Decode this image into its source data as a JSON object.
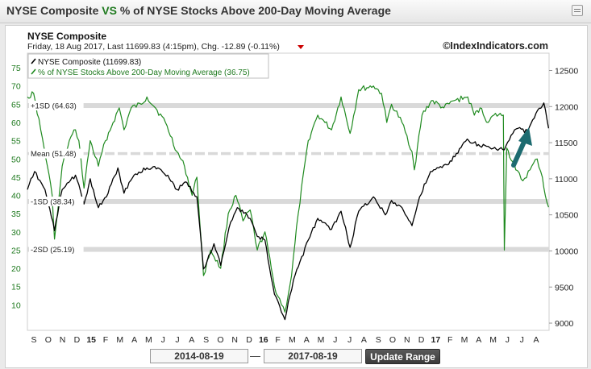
{
  "window": {
    "title_part1": "NYSE Composite",
    "title_vs": "VS",
    "title_part2": "% of NYSE Stocks Above 200-Day Moving Average"
  },
  "chart_header": {
    "name": "NYSE Composite",
    "quote": "Friday, 18 Aug 2017, Last 11699.83 (4:15pm), Chg. -12.89 (-0.11%)",
    "watermark": "©IndexIndicators.com"
  },
  "range": {
    "start": "2014-08-19",
    "separator": "—",
    "end": "2017-08-19",
    "update_label": "Update Range"
  },
  "colors": {
    "index_line": "#000000",
    "breadth_line": "#1f8a1f",
    "band": "#d9d9d9",
    "arrow": "#1d6b70",
    "down_triangle": "#cc0000"
  },
  "chart_data": {
    "type": "line",
    "legend_position": "top-left",
    "legend": [
      "NYSE Composite (11699.83)",
      "% of NYSE Stocks Above 200-Day Moving Average (36.75)"
    ],
    "x_ticks": [
      "S",
      "O",
      "N",
      "D",
      "15",
      "F",
      "M",
      "A",
      "M",
      "J",
      "J",
      "A",
      "S",
      "O",
      "N",
      "D",
      "16",
      "F",
      "M",
      "A",
      "M",
      "J",
      "J",
      "A",
      "S",
      "O",
      "N",
      "D",
      "17",
      "F",
      "M",
      "A",
      "M",
      "J",
      "J",
      "A"
    ],
    "x_range": [
      "2014-08-19",
      "2017-08-19"
    ],
    "y_left": {
      "ticks": [
        10,
        15,
        20,
        25,
        30,
        35,
        40,
        45,
        50,
        55,
        60,
        65,
        70,
        75
      ],
      "range": [
        3,
        79
      ]
    },
    "y_right": {
      "ticks": [
        9000,
        9500,
        10000,
        10500,
        11000,
        11500,
        12000,
        12500
      ],
      "range": [
        8900,
        12740
      ]
    },
    "bands": [
      {
        "label": "+1SD (64.63)",
        "value": 64.63
      },
      {
        "label": "Mean (51.48)",
        "value": 51.48,
        "style": "dashed"
      },
      {
        "label": "-1SD (38.34)",
        "value": 38.34
      },
      {
        "label": "-2SD (25.19)",
        "value": 25.19
      }
    ],
    "series": [
      {
        "name": "NYSE Composite (11699.83)",
        "axis": "right",
        "points": [
          [
            "2014-08-19",
            10850
          ],
          [
            "2014-09-03",
            11100
          ],
          [
            "2014-09-25",
            10850
          ],
          [
            "2014-10-15",
            10280
          ],
          [
            "2014-10-31",
            10850
          ],
          [
            "2014-11-28",
            11050
          ],
          [
            "2014-12-16",
            10650
          ],
          [
            "2014-12-29",
            11000
          ],
          [
            "2015-01-15",
            10600
          ],
          [
            "2015-02-01",
            10750
          ],
          [
            "2015-02-25",
            11150
          ],
          [
            "2015-03-10",
            10800
          ],
          [
            "2015-03-31",
            11050
          ],
          [
            "2015-04-27",
            11150
          ],
          [
            "2015-05-20",
            11150
          ],
          [
            "2015-06-10",
            11050
          ],
          [
            "2015-06-29",
            10850
          ],
          [
            "2015-07-20",
            10950
          ],
          [
            "2015-08-10",
            10750
          ],
          [
            "2015-08-24",
            9750
          ],
          [
            "2015-09-15",
            10100
          ],
          [
            "2015-09-29",
            9800
          ],
          [
            "2015-10-20",
            10400
          ],
          [
            "2015-11-03",
            10600
          ],
          [
            "2015-11-30",
            10450
          ],
          [
            "2015-12-15",
            10200
          ],
          [
            "2015-12-31",
            10150
          ],
          [
            "2016-01-20",
            9400
          ],
          [
            "2016-02-11",
            9050
          ],
          [
            "2016-02-29",
            9600
          ],
          [
            "2016-03-31",
            10150
          ],
          [
            "2016-04-20",
            10450
          ],
          [
            "2016-05-19",
            10300
          ],
          [
            "2016-06-08",
            10550
          ],
          [
            "2016-06-27",
            10050
          ],
          [
            "2016-07-15",
            10550
          ],
          [
            "2016-08-15",
            10750
          ],
          [
            "2016-09-09",
            10500
          ],
          [
            "2016-09-22",
            10700
          ],
          [
            "2016-10-14",
            10600
          ],
          [
            "2016-11-04",
            10350
          ],
          [
            "2016-11-20",
            10750
          ],
          [
            "2016-12-13",
            11100
          ],
          [
            "2017-01-20",
            11200
          ],
          [
            "2017-02-28",
            11550
          ],
          [
            "2017-03-27",
            11450
          ],
          [
            "2017-04-13",
            11450
          ],
          [
            "2017-05-17",
            11400
          ],
          [
            "2017-05-31",
            11600
          ],
          [
            "2017-06-15",
            11700
          ],
          [
            "2017-07-05",
            11650
          ],
          [
            "2017-07-26",
            11950
          ],
          [
            "2017-08-08",
            12050
          ],
          [
            "2017-08-18",
            11699.83
          ]
        ]
      },
      {
        "name": "% of NYSE Stocks Above 200-Day Moving Average (36.75)",
        "axis": "left",
        "points": [
          [
            "2014-08-19",
            67
          ],
          [
            "2014-09-01",
            68
          ],
          [
            "2014-09-16",
            58
          ],
          [
            "2014-09-30",
            48
          ],
          [
            "2014-10-10",
            40
          ],
          [
            "2014-10-15",
            28
          ],
          [
            "2014-10-22",
            36
          ],
          [
            "2014-10-31",
            48
          ],
          [
            "2014-11-15",
            55
          ],
          [
            "2014-11-28",
            58
          ],
          [
            "2014-12-05",
            55
          ],
          [
            "2014-12-16",
            42
          ],
          [
            "2014-12-29",
            55
          ],
          [
            "2015-01-15",
            48
          ],
          [
            "2015-01-30",
            55
          ],
          [
            "2015-02-15",
            60
          ],
          [
            "2015-02-28",
            64
          ],
          [
            "2015-03-10",
            58
          ],
          [
            "2015-03-25",
            64
          ],
          [
            "2015-04-15",
            65
          ],
          [
            "2015-04-27",
            67
          ],
          [
            "2015-05-15",
            64
          ],
          [
            "2015-06-05",
            60
          ],
          [
            "2015-06-29",
            52
          ],
          [
            "2015-07-15",
            48
          ],
          [
            "2015-07-31",
            40
          ],
          [
            "2015-08-10",
            45
          ],
          [
            "2015-08-24",
            18
          ],
          [
            "2015-09-08",
            25
          ],
          [
            "2015-09-29",
            20
          ],
          [
            "2015-10-15",
            35
          ],
          [
            "2015-10-31",
            40
          ],
          [
            "2015-11-15",
            33
          ],
          [
            "2015-11-30",
            36
          ],
          [
            "2015-12-15",
            25
          ],
          [
            "2015-12-31",
            30
          ],
          [
            "2016-01-20",
            15
          ],
          [
            "2016-02-11",
            8
          ],
          [
            "2016-02-25",
            18
          ],
          [
            "2016-03-10",
            35
          ],
          [
            "2016-03-31",
            55
          ],
          [
            "2016-04-20",
            62
          ],
          [
            "2016-05-05",
            60
          ],
          [
            "2016-05-19",
            58
          ],
          [
            "2016-06-08",
            67
          ],
          [
            "2016-06-27",
            57
          ],
          [
            "2016-07-15",
            69
          ],
          [
            "2016-08-15",
            70
          ],
          [
            "2016-09-01",
            68
          ],
          [
            "2016-09-12",
            60
          ],
          [
            "2016-09-22",
            65
          ],
          [
            "2016-10-14",
            60
          ],
          [
            "2016-11-04",
            52
          ],
          [
            "2016-11-09",
            47
          ],
          [
            "2016-11-25",
            62
          ],
          [
            "2016-12-15",
            66
          ],
          [
            "2017-01-10",
            64
          ],
          [
            "2017-02-01",
            66
          ],
          [
            "2017-03-01",
            67
          ],
          [
            "2017-03-15",
            62
          ],
          [
            "2017-03-27",
            64
          ],
          [
            "2017-04-13",
            60
          ],
          [
            "2017-04-25",
            62
          ],
          [
            "2017-05-15",
            62
          ],
          [
            "2017-05-17",
            25
          ],
          [
            "2017-05-22",
            53
          ],
          [
            "2017-06-10",
            47
          ],
          [
            "2017-06-25",
            44
          ],
          [
            "2017-07-10",
            47
          ],
          [
            "2017-07-25",
            50
          ],
          [
            "2017-08-05",
            45
          ],
          [
            "2017-08-11",
            40
          ],
          [
            "2017-08-18",
            36.75
          ]
        ]
      }
    ]
  }
}
